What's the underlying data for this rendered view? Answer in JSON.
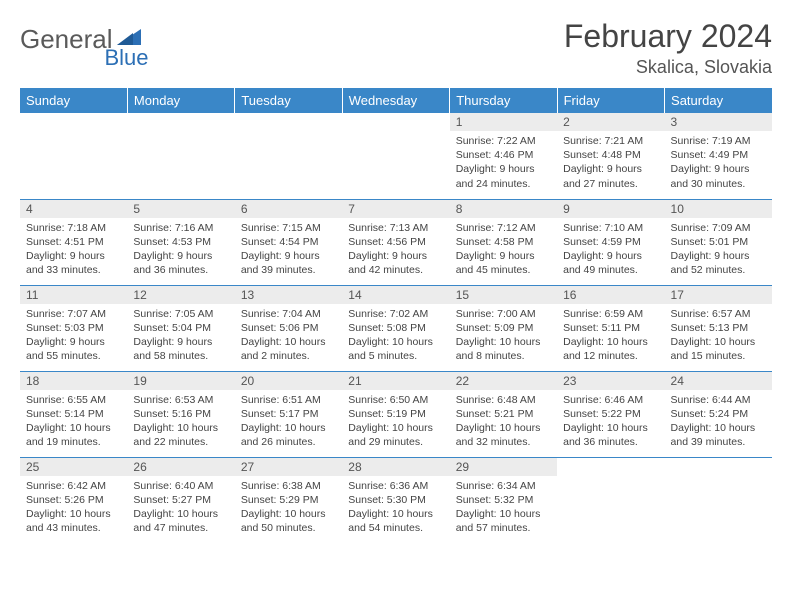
{
  "logo": {
    "text1": "General",
    "text2": "Blue"
  },
  "title": "February 2024",
  "location": "Skalica, Slovakia",
  "colors": {
    "header_bg": "#3a87c8",
    "header_text": "#ffffff",
    "daynum_bg": "#ececec",
    "border": "#3a87c8",
    "logo_gray": "#5a5a5a",
    "logo_blue": "#2c6fb5"
  },
  "weekdays": [
    "Sunday",
    "Monday",
    "Tuesday",
    "Wednesday",
    "Thursday",
    "Friday",
    "Saturday"
  ],
  "weeks": [
    [
      null,
      null,
      null,
      null,
      {
        "n": "1",
        "sr": "7:22 AM",
        "ss": "4:46 PM",
        "dl": "9 hours and 24 minutes."
      },
      {
        "n": "2",
        "sr": "7:21 AM",
        "ss": "4:48 PM",
        "dl": "9 hours and 27 minutes."
      },
      {
        "n": "3",
        "sr": "7:19 AM",
        "ss": "4:49 PM",
        "dl": "9 hours and 30 minutes."
      }
    ],
    [
      {
        "n": "4",
        "sr": "7:18 AM",
        "ss": "4:51 PM",
        "dl": "9 hours and 33 minutes."
      },
      {
        "n": "5",
        "sr": "7:16 AM",
        "ss": "4:53 PM",
        "dl": "9 hours and 36 minutes."
      },
      {
        "n": "6",
        "sr": "7:15 AM",
        "ss": "4:54 PM",
        "dl": "9 hours and 39 minutes."
      },
      {
        "n": "7",
        "sr": "7:13 AM",
        "ss": "4:56 PM",
        "dl": "9 hours and 42 minutes."
      },
      {
        "n": "8",
        "sr": "7:12 AM",
        "ss": "4:58 PM",
        "dl": "9 hours and 45 minutes."
      },
      {
        "n": "9",
        "sr": "7:10 AM",
        "ss": "4:59 PM",
        "dl": "9 hours and 49 minutes."
      },
      {
        "n": "10",
        "sr": "7:09 AM",
        "ss": "5:01 PM",
        "dl": "9 hours and 52 minutes."
      }
    ],
    [
      {
        "n": "11",
        "sr": "7:07 AM",
        "ss": "5:03 PM",
        "dl": "9 hours and 55 minutes."
      },
      {
        "n": "12",
        "sr": "7:05 AM",
        "ss": "5:04 PM",
        "dl": "9 hours and 58 minutes."
      },
      {
        "n": "13",
        "sr": "7:04 AM",
        "ss": "5:06 PM",
        "dl": "10 hours and 2 minutes."
      },
      {
        "n": "14",
        "sr": "7:02 AM",
        "ss": "5:08 PM",
        "dl": "10 hours and 5 minutes."
      },
      {
        "n": "15",
        "sr": "7:00 AM",
        "ss": "5:09 PM",
        "dl": "10 hours and 8 minutes."
      },
      {
        "n": "16",
        "sr": "6:59 AM",
        "ss": "5:11 PM",
        "dl": "10 hours and 12 minutes."
      },
      {
        "n": "17",
        "sr": "6:57 AM",
        "ss": "5:13 PM",
        "dl": "10 hours and 15 minutes."
      }
    ],
    [
      {
        "n": "18",
        "sr": "6:55 AM",
        "ss": "5:14 PM",
        "dl": "10 hours and 19 minutes."
      },
      {
        "n": "19",
        "sr": "6:53 AM",
        "ss": "5:16 PM",
        "dl": "10 hours and 22 minutes."
      },
      {
        "n": "20",
        "sr": "6:51 AM",
        "ss": "5:17 PM",
        "dl": "10 hours and 26 minutes."
      },
      {
        "n": "21",
        "sr": "6:50 AM",
        "ss": "5:19 PM",
        "dl": "10 hours and 29 minutes."
      },
      {
        "n": "22",
        "sr": "6:48 AM",
        "ss": "5:21 PM",
        "dl": "10 hours and 32 minutes."
      },
      {
        "n": "23",
        "sr": "6:46 AM",
        "ss": "5:22 PM",
        "dl": "10 hours and 36 minutes."
      },
      {
        "n": "24",
        "sr": "6:44 AM",
        "ss": "5:24 PM",
        "dl": "10 hours and 39 minutes."
      }
    ],
    [
      {
        "n": "25",
        "sr": "6:42 AM",
        "ss": "5:26 PM",
        "dl": "10 hours and 43 minutes."
      },
      {
        "n": "26",
        "sr": "6:40 AM",
        "ss": "5:27 PM",
        "dl": "10 hours and 47 minutes."
      },
      {
        "n": "27",
        "sr": "6:38 AM",
        "ss": "5:29 PM",
        "dl": "10 hours and 50 minutes."
      },
      {
        "n": "28",
        "sr": "6:36 AM",
        "ss": "5:30 PM",
        "dl": "10 hours and 54 minutes."
      },
      {
        "n": "29",
        "sr": "6:34 AM",
        "ss": "5:32 PM",
        "dl": "10 hours and 57 minutes."
      },
      null,
      null
    ]
  ],
  "labels": {
    "sunrise": "Sunrise:",
    "sunset": "Sunset:",
    "daylight": "Daylight:"
  }
}
